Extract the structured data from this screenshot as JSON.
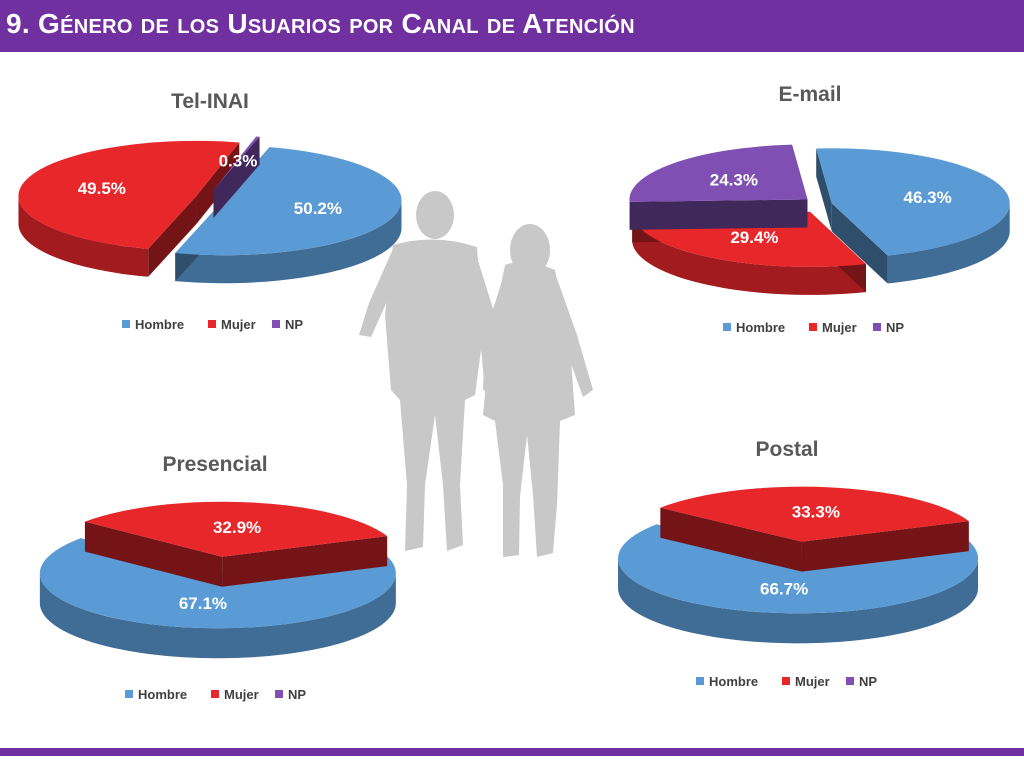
{
  "header": {
    "title": "9. Género de los Usuarios por Canal de Atención"
  },
  "colors": {
    "hombre": "#5b9bd5",
    "mujer": "#e8272b",
    "np": "#7f4fb3",
    "bar": "#7030a0",
    "silhouette": "#c8c8c8"
  },
  "legend": {
    "labels": [
      "Hombre",
      "Mujer",
      "NP"
    ]
  },
  "chart_data": [
    {
      "id": "tel",
      "type": "pie",
      "title": "Tel-INAI",
      "categories": [
        "Hombre",
        "Mujer",
        "NP"
      ],
      "values": [
        50.2,
        49.5,
        0.3
      ],
      "labels": [
        "50.2%",
        "49.5%",
        "0.3%"
      ],
      "legend": "bottom"
    },
    {
      "id": "email",
      "type": "pie",
      "title": "E-mail",
      "categories": [
        "Hombre",
        "Mujer",
        "NP"
      ],
      "values": [
        46.3,
        29.4,
        24.3
      ],
      "labels": [
        "46.3%",
        "29.4%",
        "24.3%"
      ],
      "legend": "bottom"
    },
    {
      "id": "presencial",
      "type": "pie",
      "title": "Presencial",
      "categories": [
        "Hombre",
        "Mujer",
        "NP"
      ],
      "values": [
        67.1,
        32.9,
        0
      ],
      "labels": [
        "67.1%",
        "32.9%",
        ""
      ],
      "legend": "bottom"
    },
    {
      "id": "postal",
      "type": "pie",
      "title": "Postal",
      "categories": [
        "Hombre",
        "Mujer",
        "NP"
      ],
      "values": [
        66.7,
        33.3,
        0
      ],
      "labels": [
        "66.7%",
        "33.3%",
        ""
      ],
      "legend": "bottom"
    }
  ]
}
